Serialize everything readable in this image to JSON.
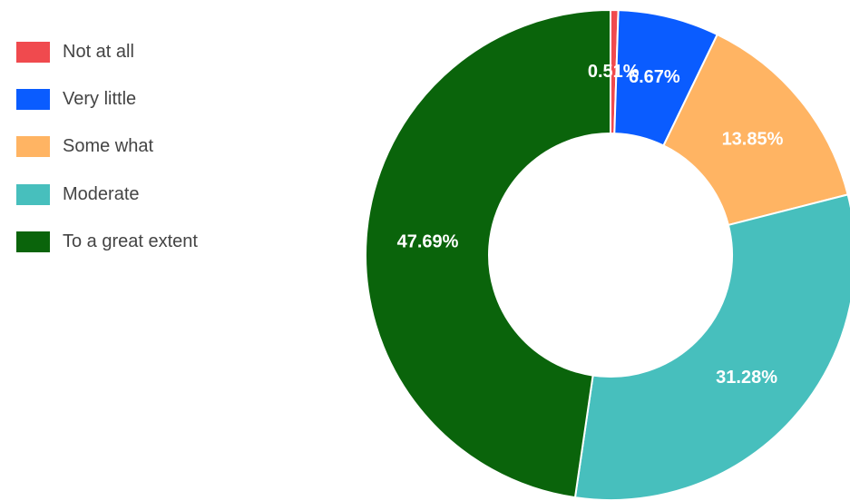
{
  "chart_data": {
    "type": "pie",
    "donut": true,
    "legend_position": "left",
    "categories": [
      "Not at all",
      "Very little",
      "Some what",
      "Moderate",
      "To a great extent"
    ],
    "values": [
      0.51,
      6.67,
      13.85,
      31.28,
      47.69
    ],
    "labels": [
      "0.51%",
      "6.67%",
      "13.85%",
      "31.28%",
      "47.69%"
    ],
    "colors": [
      "#f04a4e",
      "#0a5cff",
      "#ffb463",
      "#47bfbd",
      "#0a640b"
    ]
  }
}
